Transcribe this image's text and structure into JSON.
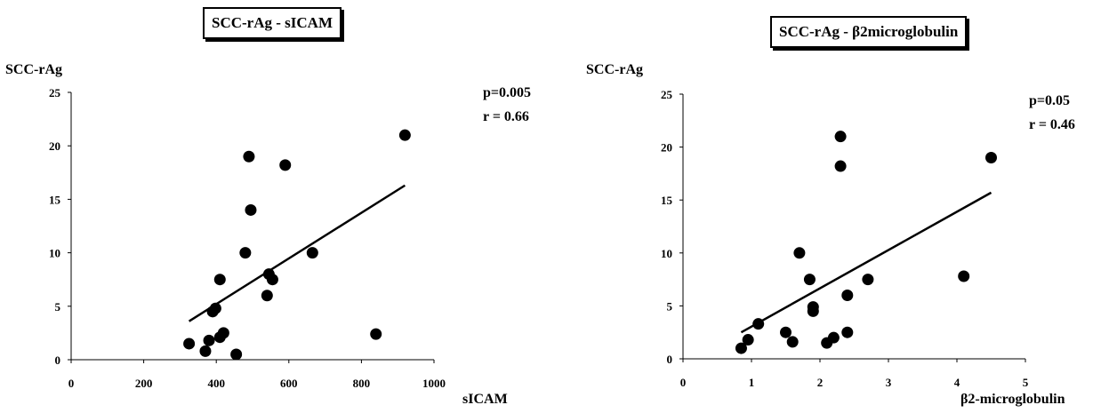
{
  "chart_data": [
    {
      "type": "scatter",
      "title": "SCC-rAg - sICAM",
      "xlabel": "sICAM",
      "ylabel": "SCC-rAg",
      "xlim": [
        0,
        1000
      ],
      "ylim": [
        0,
        25
      ],
      "xticks": [
        0,
        200,
        400,
        600,
        800,
        1000
      ],
      "yticks": [
        0,
        5,
        10,
        15,
        20,
        25
      ],
      "annotations": [
        "p=0.005",
        "r = 0.66"
      ],
      "points": [
        {
          "x": 325,
          "y": 1.5
        },
        {
          "x": 370,
          "y": 0.8
        },
        {
          "x": 380,
          "y": 1.8
        },
        {
          "x": 390,
          "y": 4.5
        },
        {
          "x": 398,
          "y": 4.8
        },
        {
          "x": 410,
          "y": 7.5
        },
        {
          "x": 410,
          "y": 2.1
        },
        {
          "x": 420,
          "y": 2.5
        },
        {
          "x": 455,
          "y": 0.5
        },
        {
          "x": 480,
          "y": 10
        },
        {
          "x": 490,
          "y": 19
        },
        {
          "x": 495,
          "y": 14
        },
        {
          "x": 540,
          "y": 6
        },
        {
          "x": 545,
          "y": 8
        },
        {
          "x": 555,
          "y": 7.5
        },
        {
          "x": 590,
          "y": 18.2
        },
        {
          "x": 665,
          "y": 10
        },
        {
          "x": 840,
          "y": 2.4
        },
        {
          "x": 920,
          "y": 21
        }
      ],
      "trendline": {
        "x": [
          325,
          920
        ],
        "y": [
          3.6,
          16.3
        ]
      }
    },
    {
      "type": "scatter",
      "title": "SCC-rAg - β2microglobulin",
      "xlabel": "β2-microglobulin",
      "ylabel": "SCC-rAg",
      "xlim": [
        0,
        5
      ],
      "ylim": [
        0,
        25
      ],
      "xticks": [
        0,
        1,
        2,
        3,
        4,
        5
      ],
      "yticks": [
        0,
        5,
        10,
        15,
        20,
        25
      ],
      "annotations": [
        "p=0.05",
        "r = 0.46"
      ],
      "points": [
        {
          "x": 0.85,
          "y": 1.0
        },
        {
          "x": 0.95,
          "y": 1.8
        },
        {
          "x": 1.1,
          "y": 3.3
        },
        {
          "x": 1.5,
          "y": 2.5
        },
        {
          "x": 1.6,
          "y": 1.6
        },
        {
          "x": 1.7,
          "y": 10
        },
        {
          "x": 1.85,
          "y": 7.5
        },
        {
          "x": 1.9,
          "y": 4.5
        },
        {
          "x": 1.9,
          "y": 4.9
        },
        {
          "x": 2.1,
          "y": 1.5
        },
        {
          "x": 2.2,
          "y": 2.0
        },
        {
          "x": 2.3,
          "y": 21
        },
        {
          "x": 2.3,
          "y": 18.2
        },
        {
          "x": 2.4,
          "y": 6
        },
        {
          "x": 2.4,
          "y": 2.5
        },
        {
          "x": 2.7,
          "y": 7.5
        },
        {
          "x": 4.1,
          "y": 7.8
        },
        {
          "x": 4.5,
          "y": 19
        }
      ],
      "trendline": {
        "x": [
          0.85,
          4.5
        ],
        "y": [
          2.5,
          15.7
        ]
      }
    }
  ]
}
